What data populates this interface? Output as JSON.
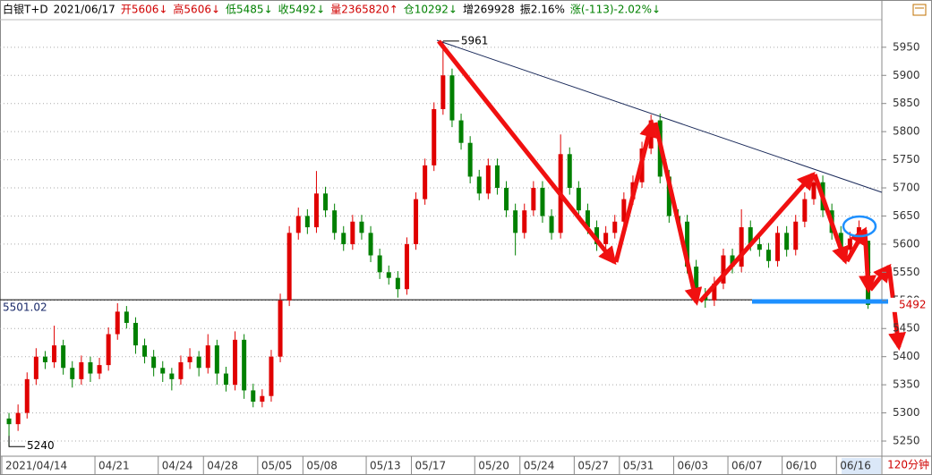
{
  "chart_data": {
    "type": "candlestick",
    "header": [
      {
        "text": "白银T+D",
        "color": "#000000"
      },
      {
        "text": "2021/06/17",
        "color": "#000000"
      },
      {
        "text": "开5606↓",
        "color": "#d00000"
      },
      {
        "text": "高5606↓",
        "color": "#d00000"
      },
      {
        "text": "低5485↓",
        "color": "#008000"
      },
      {
        "text": "收5492↓",
        "color": "#008000"
      },
      {
        "text": "量2365820↑",
        "color": "#d00000"
      },
      {
        "text": "仓10292↓",
        "color": "#008000"
      },
      {
        "text": "增269928",
        "color": "#000000"
      },
      {
        "text": "振2.16%",
        "color": "#000000"
      },
      {
        "text": "涨(-113)-2.02%↓",
        "color": "#008000"
      }
    ],
    "period": "120分钟",
    "up_color": "#e00000",
    "down_color": "#008000",
    "grid": true,
    "ylim": [
      5223,
      5999
    ],
    "yticks": [
      5250,
      5300,
      5350,
      5400,
      5450,
      5500,
      5550,
      5600,
      5650,
      5700,
      5750,
      5800,
      5850,
      5900,
      5950
    ],
    "reference_line": 5501.02,
    "high_index": 48,
    "low_index": 0,
    "categories": [
      "2021/04/14",
      null,
      null,
      null,
      null,
      null,
      null,
      null,
      null,
      null,
      "04/21",
      null,
      null,
      null,
      null,
      null,
      null,
      "04/24",
      null,
      null,
      null,
      null,
      "04/28",
      null,
      null,
      null,
      null,
      null,
      "05/05",
      null,
      null,
      null,
      null,
      "05/08",
      null,
      null,
      null,
      null,
      null,
      null,
      "05/13",
      null,
      null,
      null,
      null,
      "05/17",
      null,
      null,
      null,
      null,
      null,
      null,
      "05/20",
      null,
      null,
      null,
      null,
      "05/24",
      null,
      null,
      null,
      null,
      null,
      "05/27",
      null,
      null,
      null,
      null,
      "05/31",
      null,
      null,
      null,
      null,
      null,
      "06/03",
      null,
      null,
      null,
      null,
      null,
      "06/07",
      null,
      null,
      null,
      null,
      null,
      "06/10",
      null,
      null,
      null,
      null,
      null,
      "06/16",
      null,
      null,
      null
    ],
    "values": [
      [
        5290,
        5300,
        5240,
        5280
      ],
      [
        5280,
        5315,
        5268,
        5300
      ],
      [
        5300,
        5372,
        5290,
        5360
      ],
      [
        5360,
        5415,
        5350,
        5400
      ],
      [
        5400,
        5410,
        5378,
        5390
      ],
      [
        5390,
        5455,
        5380,
        5420
      ],
      [
        5420,
        5430,
        5368,
        5380
      ],
      [
        5380,
        5392,
        5345,
        5360
      ],
      [
        5360,
        5402,
        5350,
        5390
      ],
      [
        5390,
        5400,
        5355,
        5370
      ],
      [
        5370,
        5398,
        5360,
        5385
      ],
      [
        5385,
        5452,
        5375,
        5440
      ],
      [
        5440,
        5495,
        5430,
        5480
      ],
      [
        5480,
        5490,
        5450,
        5460
      ],
      [
        5460,
        5470,
        5405,
        5420
      ],
      [
        5420,
        5432,
        5388,
        5400
      ],
      [
        5400,
        5412,
        5365,
        5380
      ],
      [
        5380,
        5392,
        5355,
        5370
      ],
      [
        5370,
        5380,
        5340,
        5360
      ],
      [
        5360,
        5402,
        5350,
        5390
      ],
      [
        5390,
        5415,
        5378,
        5400
      ],
      [
        5400,
        5410,
        5365,
        5380
      ],
      [
        5380,
        5440,
        5370,
        5420
      ],
      [
        5420,
        5430,
        5350,
        5370
      ],
      [
        5370,
        5382,
        5338,
        5350
      ],
      [
        5350,
        5445,
        5340,
        5430
      ],
      [
        5430,
        5440,
        5325,
        5340
      ],
      [
        5340,
        5352,
        5310,
        5320
      ],
      [
        5320,
        5342,
        5310,
        5330
      ],
      [
        5330,
        5412,
        5320,
        5400
      ],
      [
        5400,
        5512,
        5390,
        5500
      ],
      [
        5500,
        5632,
        5490,
        5620
      ],
      [
        5620,
        5665,
        5608,
        5650
      ],
      [
        5650,
        5662,
        5618,
        5630
      ],
      [
        5630,
        5730,
        5620,
        5690
      ],
      [
        5690,
        5702,
        5648,
        5660
      ],
      [
        5660,
        5672,
        5608,
        5620
      ],
      [
        5620,
        5632,
        5588,
        5600
      ],
      [
        5600,
        5652,
        5590,
        5640
      ],
      [
        5640,
        5652,
        5608,
        5620
      ],
      [
        5620,
        5632,
        5568,
        5580
      ],
      [
        5580,
        5592,
        5538,
        5550
      ],
      [
        5550,
        5562,
        5528,
        5540
      ],
      [
        5540,
        5552,
        5505,
        5520
      ],
      [
        5520,
        5612,
        5510,
        5600
      ],
      [
        5600,
        5692,
        5590,
        5680
      ],
      [
        5680,
        5752,
        5670,
        5740
      ],
      [
        5740,
        5852,
        5730,
        5840
      ],
      [
        5840,
        5961,
        5830,
        5900
      ],
      [
        5900,
        5912,
        5808,
        5820
      ],
      [
        5820,
        5832,
        5768,
        5780
      ],
      [
        5780,
        5792,
        5708,
        5720
      ],
      [
        5720,
        5732,
        5678,
        5690
      ],
      [
        5690,
        5752,
        5680,
        5740
      ],
      [
        5740,
        5752,
        5688,
        5700
      ],
      [
        5700,
        5712,
        5648,
        5660
      ],
      [
        5660,
        5672,
        5580,
        5620
      ],
      [
        5620,
        5672,
        5610,
        5660
      ],
      [
        5660,
        5712,
        5650,
        5700
      ],
      [
        5700,
        5712,
        5638,
        5650
      ],
      [
        5650,
        5662,
        5608,
        5620
      ],
      [
        5620,
        5795,
        5610,
        5760
      ],
      [
        5760,
        5772,
        5688,
        5700
      ],
      [
        5700,
        5712,
        5648,
        5660
      ],
      [
        5660,
        5672,
        5618,
        5630
      ],
      [
        5630,
        5642,
        5588,
        5600
      ],
      [
        5600,
        5632,
        5590,
        5620
      ],
      [
        5620,
        5652,
        5610,
        5640
      ],
      [
        5640,
        5692,
        5630,
        5680
      ],
      [
        5680,
        5722,
        5670,
        5710
      ],
      [
        5710,
        5782,
        5700,
        5770
      ],
      [
        5770,
        5830,
        5760,
        5820
      ],
      [
        5820,
        5832,
        5708,
        5720
      ],
      [
        5720,
        5732,
        5638,
        5650
      ],
      [
        5650,
        5662,
        5628,
        5640
      ],
      [
        5640,
        5652,
        5548,
        5560
      ],
      [
        5560,
        5572,
        5498,
        5510
      ],
      [
        5510,
        5522,
        5487,
        5500
      ],
      [
        5500,
        5542,
        5490,
        5530
      ],
      [
        5530,
        5592,
        5520,
        5580
      ],
      [
        5580,
        5592,
        5548,
        5560
      ],
      [
        5560,
        5662,
        5550,
        5630
      ],
      [
        5630,
        5642,
        5588,
        5600
      ],
      [
        5600,
        5612,
        5578,
        5590
      ],
      [
        5590,
        5602,
        5558,
        5570
      ],
      [
        5570,
        5632,
        5560,
        5620
      ],
      [
        5620,
        5632,
        5578,
        5590
      ],
      [
        5590,
        5652,
        5580,
        5640
      ],
      [
        5640,
        5692,
        5630,
        5680
      ],
      [
        5680,
        5725,
        5670,
        5710
      ],
      [
        5710,
        5722,
        5648,
        5660
      ],
      [
        5660,
        5672,
        5608,
        5620
      ],
      [
        5620,
        5632,
        5578,
        5590
      ],
      [
        5590,
        5622,
        5580,
        5610
      ],
      [
        5610,
        5642,
        5600,
        5630
      ],
      [
        5606,
        5606,
        5485,
        5492
      ]
    ]
  }
}
